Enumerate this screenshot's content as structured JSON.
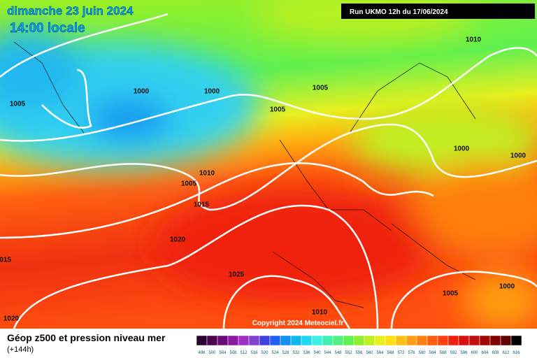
{
  "header": {
    "date": "dimanche 23 juin 2024",
    "time": "14:00 locale",
    "run": "Run UKMO 12h du 17/06/2024"
  },
  "copyright": "Copyright 2024 Meteociel.fr",
  "footer": {
    "title": "Géop z500 et pression niveau mer",
    "lead": "(+144h)"
  },
  "isobar_labels": [
    1000,
    1000,
    1005,
    1005,
    1005,
    1010,
    1000,
    1000,
    1010,
    1005,
    1015,
    1020,
    1025,
    1015,
    1020,
    1010,
    1005,
    1000
  ],
  "scale": {
    "values": [
      496,
      500,
      504,
      508,
      512,
      516,
      520,
      524,
      528,
      532,
      536,
      540,
      544,
      548,
      552,
      556,
      560,
      564,
      568,
      572,
      576,
      580,
      584,
      588,
      592,
      596,
      600,
      604,
      608,
      612,
      616
    ],
    "colors": [
      "#2a0030",
      "#4b0050",
      "#6a0a78",
      "#8a1aa0",
      "#a030c0",
      "#8040d0",
      "#4040e0",
      "#2060f0",
      "#1090f0",
      "#10b8f0",
      "#20d8f0",
      "#40f0e0",
      "#40f0b0",
      "#50f080",
      "#60f050",
      "#90f030",
      "#c0f020",
      "#e8f020",
      "#ffe010",
      "#ffc010",
      "#ffa010",
      "#ff8010",
      "#ff6010",
      "#ff4010",
      "#f02010",
      "#d81010",
      "#c01010",
      "#a00808",
      "#800000",
      "#600000",
      "#000000"
    ]
  }
}
